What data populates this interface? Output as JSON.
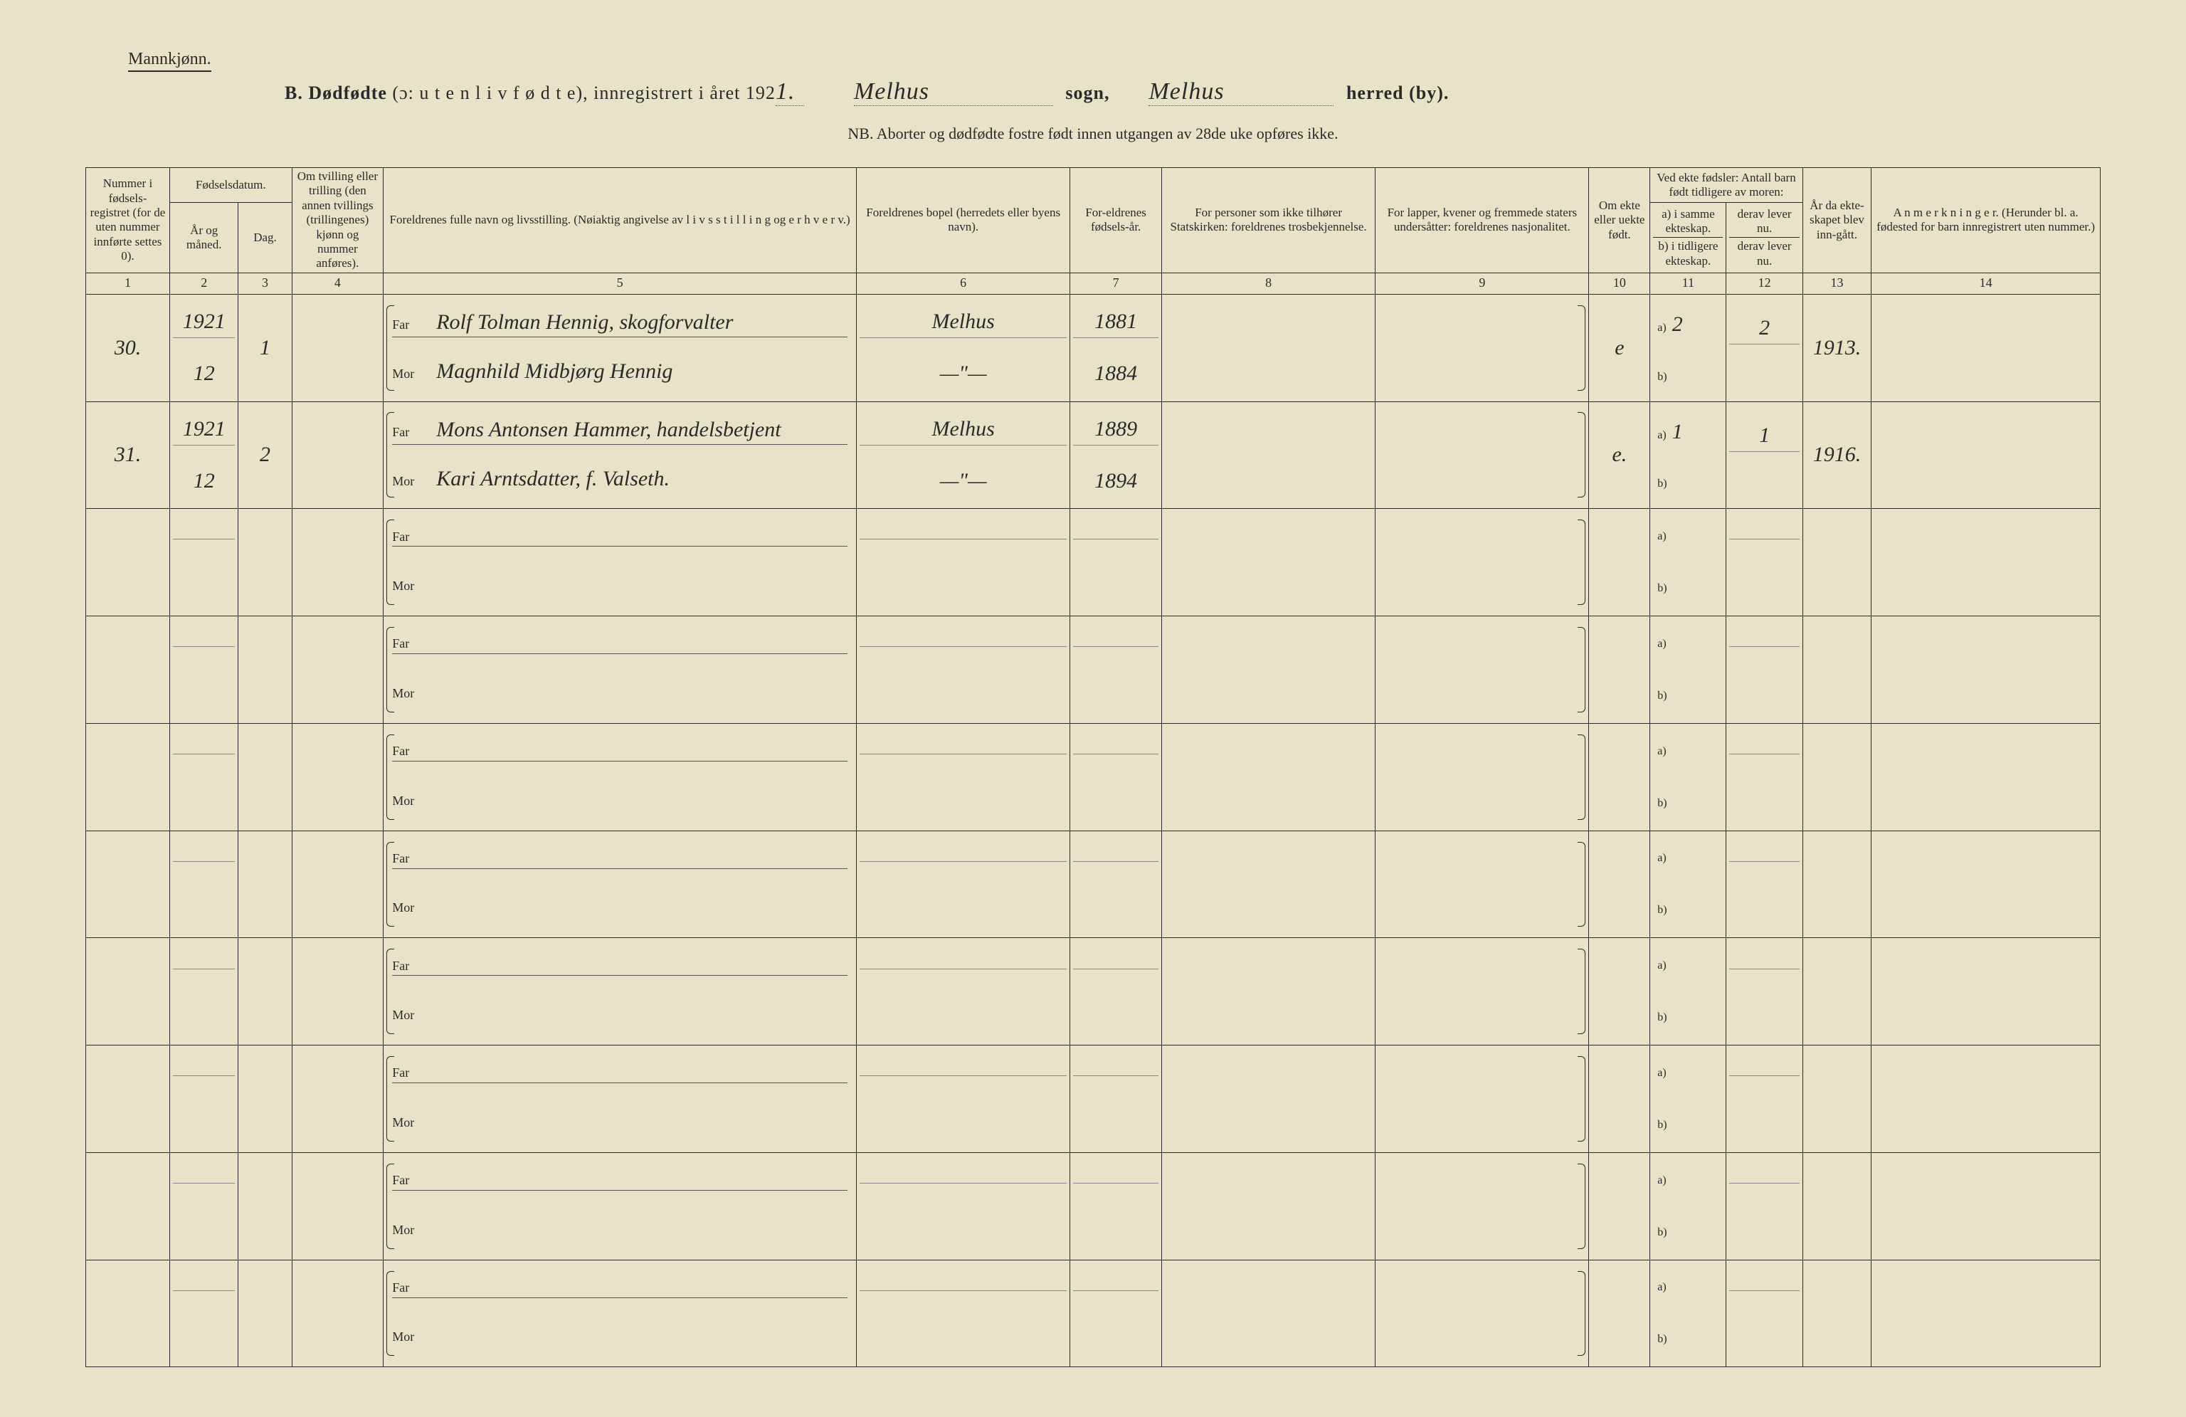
{
  "header": {
    "gender_label": "Mannkjønn.",
    "title_prefix": "B.",
    "title_main": "Dødfødte",
    "title_paren": "(ɔ:  u t e n   l i v   f ø d t e),",
    "title_reg": "innregistrert i året 192",
    "year_suffix_hw": "1.",
    "sogn_hw": "Melhus",
    "sogn_label": "sogn,",
    "herred_hw": "Melhus",
    "herred_label": "herred (by).",
    "strike_by": true,
    "nb": "NB. Aborter og dødfødte fostre født innen utgangen av 28de uke opføres ikke."
  },
  "columns": {
    "c1": "Nummer i fødsels-registret (for de uten nummer innførte settes 0).",
    "c2_group": "Fødselsdatum.",
    "c2a": "År og måned.",
    "c2b": "Dag.",
    "c4": "Om tvilling eller trilling (den annen tvillings (trillingenes) kjønn og nummer anføres).",
    "c5": "Foreldrenes fulle navn og livsstilling. (Nøiaktig angivelse av  l i v s s t i l l i n g  og  e r h v e r v.)",
    "c6": "Foreldrenes bopel (herredets eller byens navn).",
    "c7": "For-eldrenes fødsels-år.",
    "c8": "For personer som ikke tilhører Statskirken: foreldrenes trosbekjennelse.",
    "c9": "For lapper, kvener og fremmede staters undersåtter: foreldrenes nasjonalitet.",
    "c10": "Om ekte eller uekte født.",
    "c11_group": "Ved ekte fødsler: Antall barn født tidligere av moren:",
    "c11a": "a) i samme ekteskap.",
    "c11b": "derav lever nu.",
    "c11c": "b) i tidligere ekteskap.",
    "c11d": "derav lever nu.",
    "c13": "År da ekte-skapet blev inn-gått.",
    "c14": "A n m e r k n i n g e r. (Herunder bl. a. fødested for barn innregistrert uten nummer.)",
    "nums": [
      "1",
      "2",
      "3",
      "4",
      "5",
      "6",
      "7",
      "8",
      "9",
      "10",
      "11",
      "12",
      "13",
      "14"
    ],
    "far_label": "Far",
    "mor_label": "Mor",
    "a_label": "a)",
    "b_label": "b)"
  },
  "rows": [
    {
      "num": "30.",
      "year_month_top": "1921",
      "year_month_bot": "12",
      "day": "1",
      "twin": "",
      "far": "Rolf Tolman Hennig, skogforvalter",
      "mor": "Magnhild Midbjørg Hennig",
      "bopel_far": "Melhus",
      "bopel_mor": "—\"—",
      "faar_far": "1881",
      "faar_mor": "1884",
      "tros": "",
      "nasj": "",
      "ekte": "e",
      "a_val": "2",
      "a_lev": "2",
      "b_val": "",
      "b_lev": "",
      "aar_ekt": "1913.",
      "anm": ""
    },
    {
      "num": "31.",
      "year_month_top": "1921",
      "year_month_bot": "12",
      "day": "2",
      "twin": "",
      "far": "Mons Antonsen Hammer, handelsbetjent",
      "mor": "Kari Arntsdatter, f. Valseth.",
      "bopel_far": "Melhus",
      "bopel_mor": "—\"—",
      "faar_far": "1889",
      "faar_mor": "1894",
      "tros": "",
      "nasj": "",
      "ekte": "e.",
      "a_val": "1",
      "a_lev": "1",
      "b_val": "",
      "b_lev": "",
      "aar_ekt": "1916.",
      "anm": ""
    },
    {
      "num": "",
      "year_month_top": "",
      "year_month_bot": "",
      "day": "",
      "twin": "",
      "far": "",
      "mor": "",
      "bopel_far": "",
      "bopel_mor": "",
      "faar_far": "",
      "faar_mor": "",
      "tros": "",
      "nasj": "",
      "ekte": "",
      "a_val": "",
      "a_lev": "",
      "b_val": "",
      "b_lev": "",
      "aar_ekt": "",
      "anm": ""
    },
    {
      "num": "",
      "year_month_top": "",
      "year_month_bot": "",
      "day": "",
      "twin": "",
      "far": "",
      "mor": "",
      "bopel_far": "",
      "bopel_mor": "",
      "faar_far": "",
      "faar_mor": "",
      "tros": "",
      "nasj": "",
      "ekte": "",
      "a_val": "",
      "a_lev": "",
      "b_val": "",
      "b_lev": "",
      "aar_ekt": "",
      "anm": ""
    },
    {
      "num": "",
      "year_month_top": "",
      "year_month_bot": "",
      "day": "",
      "twin": "",
      "far": "",
      "mor": "",
      "bopel_far": "",
      "bopel_mor": "",
      "faar_far": "",
      "faar_mor": "",
      "tros": "",
      "nasj": "",
      "ekte": "",
      "a_val": "",
      "a_lev": "",
      "b_val": "",
      "b_lev": "",
      "aar_ekt": "",
      "anm": ""
    },
    {
      "num": "",
      "year_month_top": "",
      "year_month_bot": "",
      "day": "",
      "twin": "",
      "far": "",
      "mor": "",
      "bopel_far": "",
      "bopel_mor": "",
      "faar_far": "",
      "faar_mor": "",
      "tros": "",
      "nasj": "",
      "ekte": "",
      "a_val": "",
      "a_lev": "",
      "b_val": "",
      "b_lev": "",
      "aar_ekt": "",
      "anm": ""
    },
    {
      "num": "",
      "year_month_top": "",
      "year_month_bot": "",
      "day": "",
      "twin": "",
      "far": "",
      "mor": "",
      "bopel_far": "",
      "bopel_mor": "",
      "faar_far": "",
      "faar_mor": "",
      "tros": "",
      "nasj": "",
      "ekte": "",
      "a_val": "",
      "a_lev": "",
      "b_val": "",
      "b_lev": "",
      "aar_ekt": "",
      "anm": ""
    },
    {
      "num": "",
      "year_month_top": "",
      "year_month_bot": "",
      "day": "",
      "twin": "",
      "far": "",
      "mor": "",
      "bopel_far": "",
      "bopel_mor": "",
      "faar_far": "",
      "faar_mor": "",
      "tros": "",
      "nasj": "",
      "ekte": "",
      "a_val": "",
      "a_lev": "",
      "b_val": "",
      "b_lev": "",
      "aar_ekt": "",
      "anm": ""
    },
    {
      "num": "",
      "year_month_top": "",
      "year_month_bot": "",
      "day": "",
      "twin": "",
      "far": "",
      "mor": "",
      "bopel_far": "",
      "bopel_mor": "",
      "faar_far": "",
      "faar_mor": "",
      "tros": "",
      "nasj": "",
      "ekte": "",
      "a_val": "",
      "a_lev": "",
      "b_val": "",
      "b_lev": "",
      "aar_ekt": "",
      "anm": ""
    },
    {
      "num": "",
      "year_month_top": "",
      "year_month_bot": "",
      "day": "",
      "twin": "",
      "far": "",
      "mor": "",
      "bopel_far": "",
      "bopel_mor": "",
      "faar_far": "",
      "faar_mor": "",
      "tros": "",
      "nasj": "",
      "ekte": "",
      "a_val": "",
      "a_lev": "",
      "b_val": "",
      "b_lev": "",
      "aar_ekt": "",
      "anm": ""
    }
  ]
}
